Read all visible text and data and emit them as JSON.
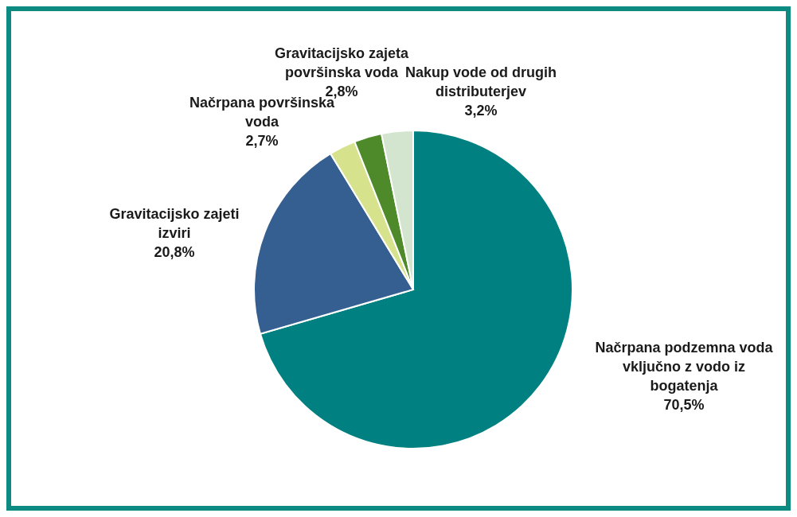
{
  "chart_data": {
    "type": "pie",
    "categories": [
      "Načrpana podzemna voda vključno z vodo iz bogatenja",
      "Gravitacijsko zajeti izviri",
      "Načrpana površinska voda",
      "Gravitacijsko zajeta površinska voda",
      "Nakup vode od drugih distributerjev"
    ],
    "values": [
      70.5,
      20.8,
      2.7,
      2.8,
      3.2
    ],
    "value_labels": [
      "70,5%",
      "20,8%",
      "2,7%",
      "2,8%",
      "3,2%"
    ],
    "colors": [
      "#008080",
      "#365f91",
      "#d7e28c",
      "#4e8a2a",
      "#d3e5cf"
    ],
    "legend": false
  }
}
